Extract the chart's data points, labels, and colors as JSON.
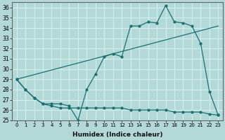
{
  "xlabel": "Humidex (Indice chaleur)",
  "xlim": [
    -0.5,
    23.5
  ],
  "ylim": [
    25,
    36.5
  ],
  "yticks": [
    25,
    26,
    27,
    28,
    29,
    30,
    31,
    32,
    33,
    34,
    35,
    36
  ],
  "xticks": [
    0,
    1,
    2,
    3,
    4,
    5,
    6,
    7,
    8,
    9,
    10,
    11,
    12,
    13,
    14,
    15,
    16,
    17,
    18,
    19,
    20,
    21,
    22,
    23
  ],
  "bg_color": "#b2d8d8",
  "grid_color": "#d4eeee",
  "line_color": "#1a7070",
  "line1_x": [
    0,
    1,
    2,
    3,
    4,
    5,
    6,
    7,
    8,
    9,
    10,
    11,
    12,
    13,
    14,
    15,
    16,
    17,
    18,
    19,
    20,
    21,
    22,
    23
  ],
  "line1_y": [
    29.0,
    28.0,
    27.2,
    26.6,
    26.6,
    26.6,
    26.4,
    25.0,
    28.0,
    29.5,
    31.2,
    31.5,
    31.2,
    34.2,
    34.2,
    34.6,
    34.5,
    36.2,
    34.6,
    34.5,
    34.2,
    32.5,
    27.8,
    25.5
  ],
  "line2_x": [
    0,
    1,
    2,
    3,
    4,
    5,
    6,
    7,
    8,
    9,
    10,
    11,
    12,
    13,
    14,
    15,
    16,
    17,
    18,
    19,
    20,
    21,
    22,
    23
  ],
  "line2_y": [
    29.0,
    28.0,
    27.2,
    26.6,
    26.4,
    26.2,
    26.2,
    26.2,
    26.2,
    26.2,
    26.2,
    26.2,
    26.2,
    26.0,
    26.0,
    26.0,
    26.0,
    26.0,
    25.8,
    25.8,
    25.8,
    25.8,
    25.6,
    25.5
  ],
  "line3_x": [
    0,
    23
  ],
  "line3_y": [
    29.0,
    34.2
  ]
}
